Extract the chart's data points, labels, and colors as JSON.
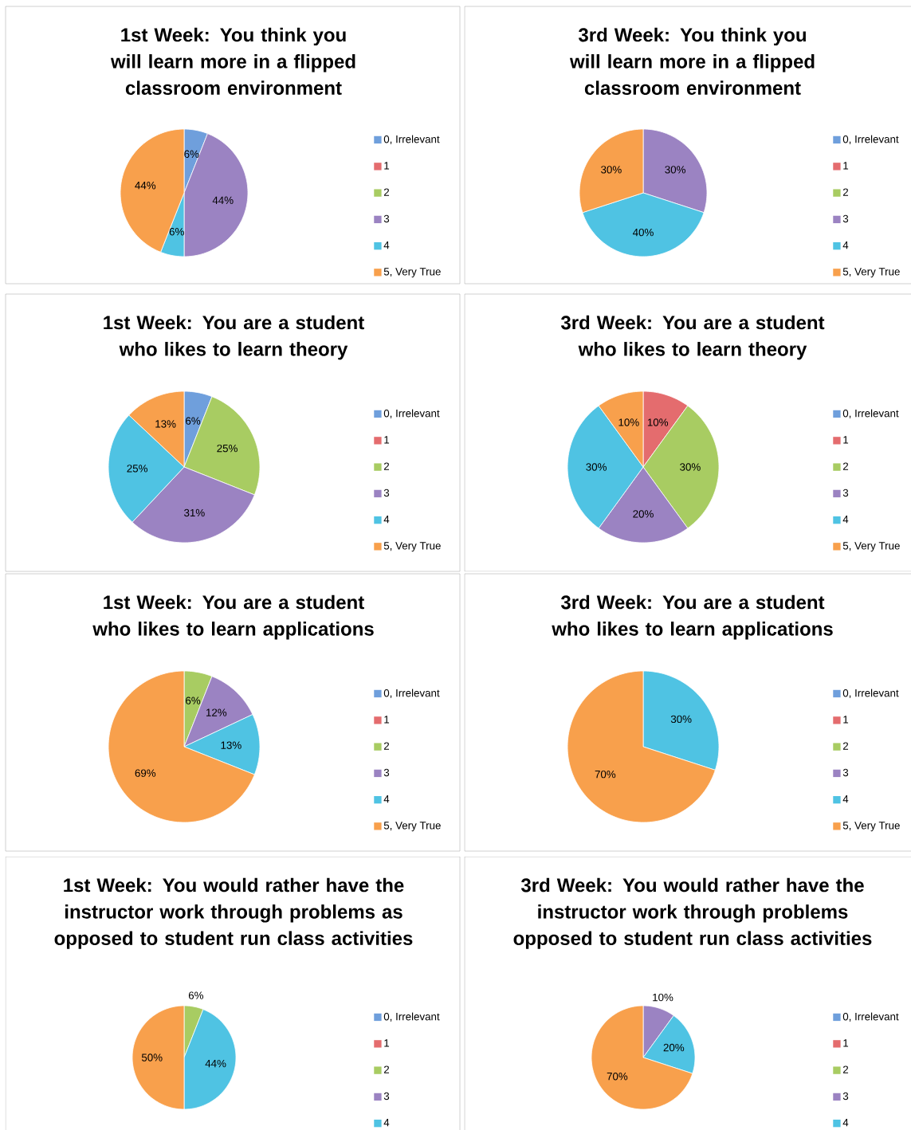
{
  "chart_data": [
    {
      "type": "pie",
      "title": "1st Week: You think you will learn more in a flipped classroom environment",
      "categories": [
        "0, Irrelevant",
        "1",
        "2",
        "3",
        "4",
        "5, Very True"
      ],
      "values": [
        6,
        0,
        0,
        44,
        6,
        44
      ],
      "value_labels": [
        "6%",
        null,
        null,
        "44%",
        "6%",
        "44%"
      ],
      "colors": [
        "#6f9fdc",
        "#e46c6e",
        "#a8cc62",
        "#9b83c2",
        "#4fc3e3",
        "#f8a04c"
      ],
      "legend": "right"
    },
    {
      "type": "pie",
      "title": "3rd Week: You think you will learn more in a flipped classroom environment",
      "categories": [
        "0, Irrelevant",
        "1",
        "2",
        "3",
        "4",
        "5, Very True"
      ],
      "values": [
        0,
        0,
        0,
        30,
        40,
        30
      ],
      "value_labels": [
        null,
        null,
        null,
        "30%",
        "40%",
        "30%"
      ],
      "colors": [
        "#6f9fdc",
        "#e46c6e",
        "#a8cc62",
        "#9b83c2",
        "#4fc3e3",
        "#f8a04c"
      ],
      "legend": "right"
    },
    {
      "type": "pie",
      "title": "1st Week: You are a student who likes to learn theory",
      "categories": [
        "0, Irrelevant",
        "1",
        "2",
        "3",
        "4",
        "5, Very True"
      ],
      "values": [
        6,
        0,
        25,
        31,
        25,
        13
      ],
      "value_labels": [
        "6%",
        null,
        "25%",
        "31%",
        "25%",
        "13%"
      ],
      "colors": [
        "#6f9fdc",
        "#e46c6e",
        "#a8cc62",
        "#9b83c2",
        "#4fc3e3",
        "#f8a04c"
      ],
      "legend": "right"
    },
    {
      "type": "pie",
      "title": "3rd Week: You are a student who likes to learn theory",
      "categories": [
        "0, Irrelevant",
        "1",
        "2",
        "3",
        "4",
        "5, Very True"
      ],
      "values": [
        0,
        10,
        30,
        20,
        30,
        10
      ],
      "value_labels": [
        null,
        "10%",
        "30%",
        "20%",
        "30%",
        "10%"
      ],
      "colors": [
        "#6f9fdc",
        "#e46c6e",
        "#a8cc62",
        "#9b83c2",
        "#4fc3e3",
        "#f8a04c"
      ],
      "legend": "right"
    },
    {
      "type": "pie",
      "title": "1st Week: You are a student who likes to learn applications",
      "categories": [
        "0, Irrelevant",
        "1",
        "2",
        "3",
        "4",
        "5, Very True"
      ],
      "values": [
        0,
        0,
        6,
        12,
        13,
        69
      ],
      "value_labels": [
        null,
        null,
        "6%",
        "12%",
        "13%",
        "69%"
      ],
      "colors": [
        "#6f9fdc",
        "#e46c6e",
        "#a8cc62",
        "#9b83c2",
        "#4fc3e3",
        "#f8a04c"
      ],
      "legend": "right"
    },
    {
      "type": "pie",
      "title": "3rd Week: You are a student who likes to learn applications",
      "categories": [
        "0, Irrelevant",
        "1",
        "2",
        "3",
        "4",
        "5, Very True"
      ],
      "values": [
        0,
        0,
        0,
        0,
        30,
        70
      ],
      "value_labels": [
        null,
        null,
        null,
        null,
        "30%",
        "70%"
      ],
      "colors": [
        "#6f9fdc",
        "#e46c6e",
        "#a8cc62",
        "#9b83c2",
        "#4fc3e3",
        "#f8a04c"
      ],
      "legend": "right"
    },
    {
      "type": "pie",
      "title": "1st Week: You would rather have the instructor work through problems as opposed to student run class activities",
      "categories": [
        "0, Irrelevant",
        "1",
        "2",
        "3",
        "4",
        null
      ],
      "values": [
        0,
        0,
        6,
        0,
        44,
        50
      ],
      "value_labels": [
        null,
        null,
        "6%",
        null,
        "44%",
        "50%"
      ],
      "colors": [
        "#6f9fdc",
        "#e46c6e",
        "#a8cc62",
        "#9b83c2",
        "#4fc3e3",
        "#f8a04c"
      ],
      "legend": "right"
    },
    {
      "type": "pie",
      "title": "3rd Week: You would rather have the instructor work through problems opposed to student run class activities",
      "categories": [
        "0, Irrelevant",
        "1",
        "2",
        "3",
        "4",
        null
      ],
      "values": [
        0,
        0,
        0,
        10,
        20,
        70
      ],
      "value_labels": [
        null,
        null,
        null,
        "10%",
        "20%",
        "70%"
      ],
      "colors": [
        "#6f9fdc",
        "#e46c6e",
        "#a8cc62",
        "#9b83c2",
        "#4fc3e3",
        "#f8a04c"
      ],
      "legend": "right"
    }
  ]
}
